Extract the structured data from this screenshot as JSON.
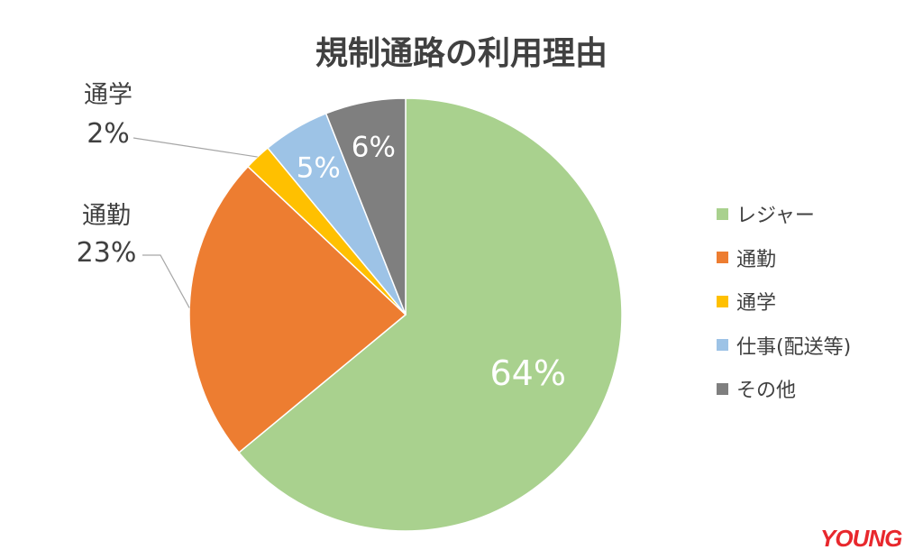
{
  "chart_data": {
    "type": "pie",
    "title": "規制通路の利用理由",
    "categories": [
      "レジャー",
      "通勤",
      "通学",
      "仕事(配送等)",
      "その他"
    ],
    "values": [
      64,
      23,
      2,
      5,
      6
    ],
    "labels": [
      "64%",
      "23%",
      "2%",
      "5%",
      "6%"
    ],
    "colors": [
      "#a9d18e",
      "#ed7d31",
      "#ffc000",
      "#9dc3e6",
      "#7f7f7f"
    ],
    "start_angle_deg": 0,
    "direction": "clockwise",
    "legend_position": "right",
    "label_placement": [
      "inside",
      "outside-left",
      "outside-left",
      "inside",
      "inside"
    ]
  },
  "watermark": "YOUNG"
}
